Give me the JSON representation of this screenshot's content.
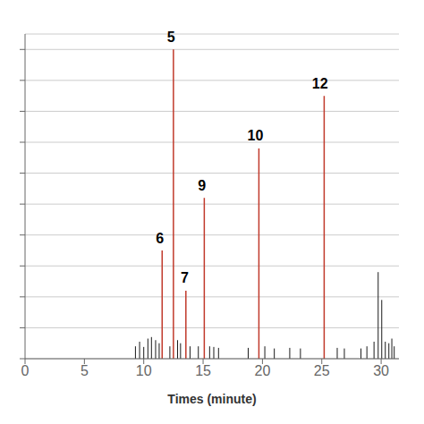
{
  "chart_data": {
    "type": "stem",
    "xlabel": "Times (minute)",
    "xlim": [
      0,
      31.5
    ],
    "xticks": [
      0,
      5,
      10,
      15,
      20,
      25,
      30
    ],
    "ylim": [
      0,
      1.05
    ],
    "yticks": [
      0,
      0.1,
      0.2,
      0.3,
      0.4,
      0.5,
      0.6,
      0.7,
      0.8,
      0.9,
      1.0
    ],
    "grid": true,
    "tick_labels": "x",
    "series": [
      {
        "color": "#1a1a1a",
        "x": [
          9.3,
          9.65,
          10.0,
          10.35,
          10.65,
          11.0,
          11.3,
          12.2,
          12.85,
          13.1,
          13.9,
          14.6,
          15.55,
          15.9,
          16.3,
          18.8,
          20.2,
          21.0,
          22.3,
          23.2,
          26.3,
          26.9,
          28.3,
          28.8,
          29.4,
          29.75,
          30.05,
          30.35,
          30.65,
          30.9,
          31.1
        ],
        "values": [
          0.04,
          0.055,
          0.038,
          0.065,
          0.07,
          0.06,
          0.05,
          0.04,
          0.06,
          0.05,
          0.04,
          0.04,
          0.04,
          0.038,
          0.035,
          0.035,
          0.04,
          0.033,
          0.035,
          0.033,
          0.035,
          0.033,
          0.033,
          0.04,
          0.055,
          0.28,
          0.19,
          0.055,
          0.05,
          0.065,
          0.04
        ]
      },
      {
        "color": "#c0392b",
        "x": [
          12.5,
          11.55,
          13.55,
          15.1,
          19.7,
          25.2
        ],
        "values": [
          1.0,
          0.35,
          0.22,
          0.52,
          0.68,
          0.85
        ]
      }
    ],
    "annotations": [
      {
        "text": "5",
        "x": 12.3,
        "y": 1.01
      },
      {
        "text": "6",
        "x": 11.35,
        "y": 0.36
      },
      {
        "text": "7",
        "x": 13.45,
        "y": 0.23
      },
      {
        "text": "9",
        "x": 14.9,
        "y": 0.53
      },
      {
        "text": "10",
        "x": 19.4,
        "y": 0.69
      },
      {
        "text": "12",
        "x": 24.85,
        "y": 0.86
      }
    ]
  }
}
